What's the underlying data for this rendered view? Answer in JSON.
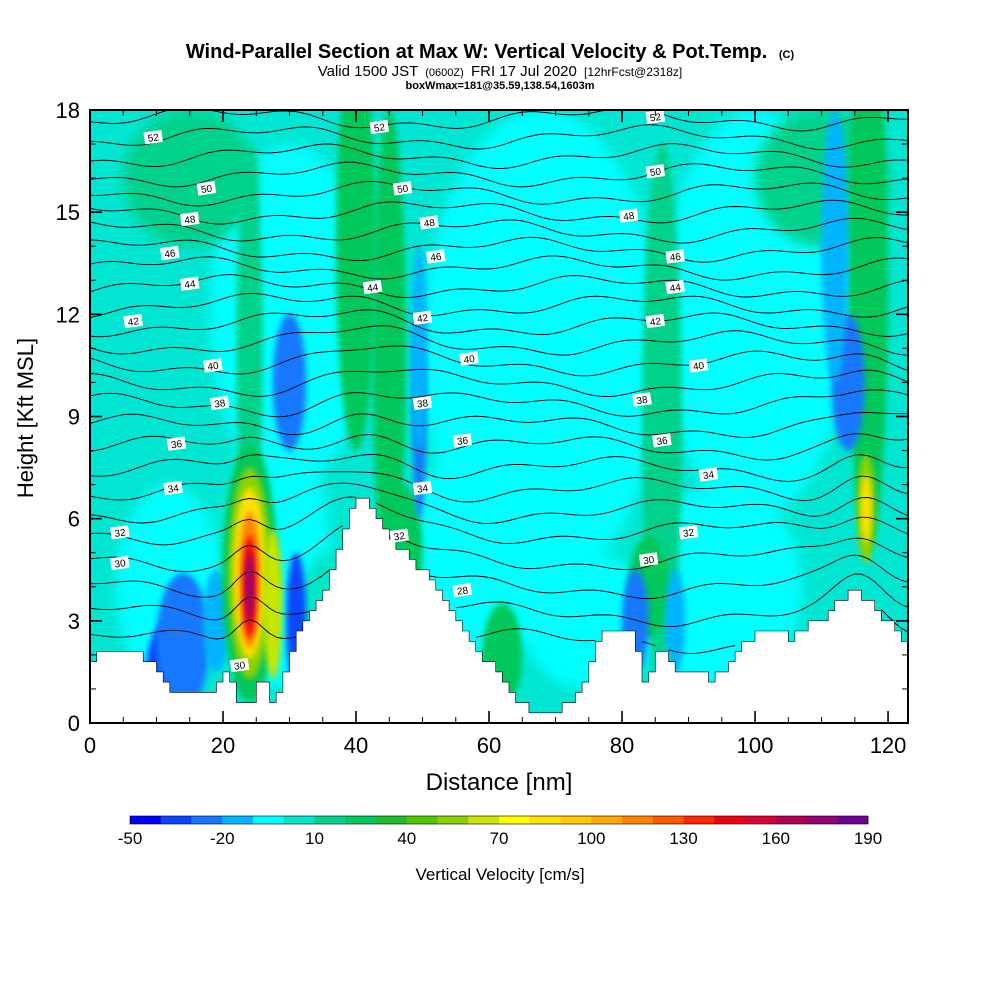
{
  "chart_data": {
    "type": "heatmap",
    "title": "Wind-Parallel Section at Max W: Vertical Velocity & Pot.Temp.",
    "title_mark": "(C)",
    "subtitle_prefix": "Valid 1500 JST",
    "subtitle_zone": "(0600Z)",
    "subtitle_date": "FRI 17 Jul 2020",
    "subtitle_fcst": "[12hrFcst@2318z]",
    "subtitle2": "boxWmax=181@35.59,138.54,1603m",
    "xlabel": "Distance [nm]",
    "ylabel": "Height [Kft MSL]",
    "xlim": [
      0,
      123
    ],
    "ylim": [
      0,
      18
    ],
    "x_ticks": [
      0,
      20,
      40,
      60,
      80,
      100,
      120
    ],
    "x_tick_labels": [
      "0",
      "20",
      "40",
      "60",
      "80",
      "100",
      "120"
    ],
    "y_ticks": [
      0,
      3,
      6,
      9,
      12,
      15,
      18
    ],
    "y_tick_labels": [
      "0",
      "3",
      "6",
      "9",
      "12",
      "15",
      "18"
    ],
    "colorbar": {
      "label": "Vertical Velocity [cm/s]",
      "levels": [
        -50,
        -40,
        -30,
        -20,
        -10,
        0,
        10,
        20,
        30,
        40,
        50,
        60,
        70,
        80,
        90,
        100,
        110,
        120,
        130,
        140,
        150,
        160,
        170,
        180,
        190
      ],
      "tick_values": [
        -50,
        -20,
        10,
        40,
        70,
        100,
        130,
        160,
        190
      ],
      "tick_labels": [
        "-50",
        "-20",
        "10",
        "40",
        "70",
        "100",
        "130",
        "160",
        "190"
      ],
      "colors": [
        "#0000ff",
        "#0a46ff",
        "#1478ff",
        "#00b4ff",
        "#00ffff",
        "#00e6c8",
        "#00d28c",
        "#00c85a",
        "#1ebe28",
        "#50c800",
        "#8cd200",
        "#c8e600",
        "#ffff00",
        "#ffe100",
        "#ffc800",
        "#ffaa00",
        "#ff8200",
        "#ff5a00",
        "#ff2800",
        "#f00014",
        "#dc0032",
        "#b40050",
        "#960078",
        "#6e0096"
      ]
    },
    "series": [
      {
        "type": "terrain",
        "x": [
          0,
          1,
          4,
          8,
          10,
          11,
          12,
          16,
          18,
          19,
          20,
          21,
          22,
          23,
          24,
          25,
          26,
          27,
          28,
          29,
          30,
          32,
          34,
          35,
          36,
          37,
          38,
          39,
          40,
          41,
          42,
          43,
          44,
          46,
          48,
          50,
          52,
          54,
          55,
          56,
          57,
          58,
          60,
          62,
          64,
          66,
          68,
          70,
          72,
          74,
          75,
          76,
          77,
          78,
          80,
          82,
          83,
          84,
          85,
          86,
          88,
          90,
          92,
          94,
          96,
          97,
          98,
          100,
          102,
          104,
          106,
          108,
          110,
          112,
          114,
          116,
          118,
          120,
          121,
          122,
          123
        ],
        "height": [
          1.8,
          2.0,
          2.0,
          2.0,
          1.6,
          1.3,
          1.0,
          0.8,
          0.8,
          1.0,
          1.3,
          1.6,
          1.0,
          0.4,
          0.5,
          0.9,
          1.5,
          0.8,
          0.6,
          1.2,
          2.0,
          2.8,
          3.3,
          3.6,
          4.2,
          4.8,
          5.4,
          5.9,
          6.4,
          6.6,
          6.6,
          6.2,
          5.8,
          5.3,
          4.9,
          4.5,
          4.0,
          3.5,
          3.0,
          2.7,
          2.5,
          2.2,
          1.8,
          1.2,
          0.7,
          0.4,
          0.3,
          0.3,
          0.5,
          0.9,
          1.4,
          2.0,
          2.5,
          2.7,
          2.8,
          2.6,
          1.5,
          1.0,
          1.8,
          2.2,
          1.6,
          1.6,
          1.4,
          1.3,
          1.7,
          2.0,
          2.4,
          2.5,
          2.7,
          2.6,
          2.5,
          2.8,
          3.0,
          3.4,
          3.8,
          3.8,
          3.5,
          3.0,
          2.7,
          2.5,
          2.3
        ]
      },
      {
        "type": "contour",
        "name": "Pot.Temp. isentropes",
        "levels": [
          28,
          29,
          30,
          31,
          32,
          33,
          34,
          35,
          36,
          37,
          38,
          39,
          40,
          41,
          42,
          43,
          44,
          45,
          46,
          47,
          48,
          49,
          50,
          51,
          52,
          53
        ]
      },
      {
        "type": "contour_labels",
        "labels": [
          {
            "text": "52",
            "x": 9.5,
            "y": 17.2
          },
          {
            "text": "50",
            "x": 17.5,
            "y": 15.7
          },
          {
            "text": "48",
            "x": 15,
            "y": 14.8
          },
          {
            "text": "46",
            "x": 12,
            "y": 13.8
          },
          {
            "text": "44",
            "x": 15,
            "y": 12.9
          },
          {
            "text": "42",
            "x": 6.5,
            "y": 11.8
          },
          {
            "text": "40",
            "x": 18.5,
            "y": 10.5
          },
          {
            "text": "38",
            "x": 19.5,
            "y": 9.4
          },
          {
            "text": "36",
            "x": 13,
            "y": 8.2
          },
          {
            "text": "34",
            "x": 12.5,
            "y": 6.9
          },
          {
            "text": "32",
            "x": 4.5,
            "y": 5.6
          },
          {
            "text": "30",
            "x": 4.5,
            "y": 4.7
          },
          {
            "text": "30",
            "x": 22.5,
            "y": 1.7
          },
          {
            "text": "52",
            "x": 43.5,
            "y": 17.5
          },
          {
            "text": "50",
            "x": 47,
            "y": 15.7
          },
          {
            "text": "48",
            "x": 51,
            "y": 14.7
          },
          {
            "text": "46",
            "x": 52,
            "y": 13.7
          },
          {
            "text": "44",
            "x": 42.5,
            "y": 12.8
          },
          {
            "text": "42",
            "x": 50,
            "y": 11.9
          },
          {
            "text": "40",
            "x": 57,
            "y": 10.7
          },
          {
            "text": "38",
            "x": 50,
            "y": 9.4
          },
          {
            "text": "36",
            "x": 56,
            "y": 8.3
          },
          {
            "text": "34",
            "x": 50,
            "y": 6.9
          },
          {
            "text": "32",
            "x": 46.5,
            "y": 5.5
          },
          {
            "text": "28",
            "x": 56,
            "y": 3.9
          },
          {
            "text": "52",
            "x": 85,
            "y": 17.8
          },
          {
            "text": "50",
            "x": 85,
            "y": 16.2
          },
          {
            "text": "48",
            "x": 81,
            "y": 14.9
          },
          {
            "text": "46",
            "x": 88,
            "y": 13.7
          },
          {
            "text": "44",
            "x": 88,
            "y": 12.8
          },
          {
            "text": "42",
            "x": 85,
            "y": 11.8
          },
          {
            "text": "40",
            "x": 91.5,
            "y": 10.5
          },
          {
            "text": "38",
            "x": 83,
            "y": 9.5
          },
          {
            "text": "36",
            "x": 86,
            "y": 8.3
          },
          {
            "text": "34",
            "x": 93,
            "y": 7.3
          },
          {
            "text": "32",
            "x": 90,
            "y": 5.6
          },
          {
            "text": "30",
            "x": 84,
            "y": 4.8
          }
        ]
      }
    ]
  }
}
